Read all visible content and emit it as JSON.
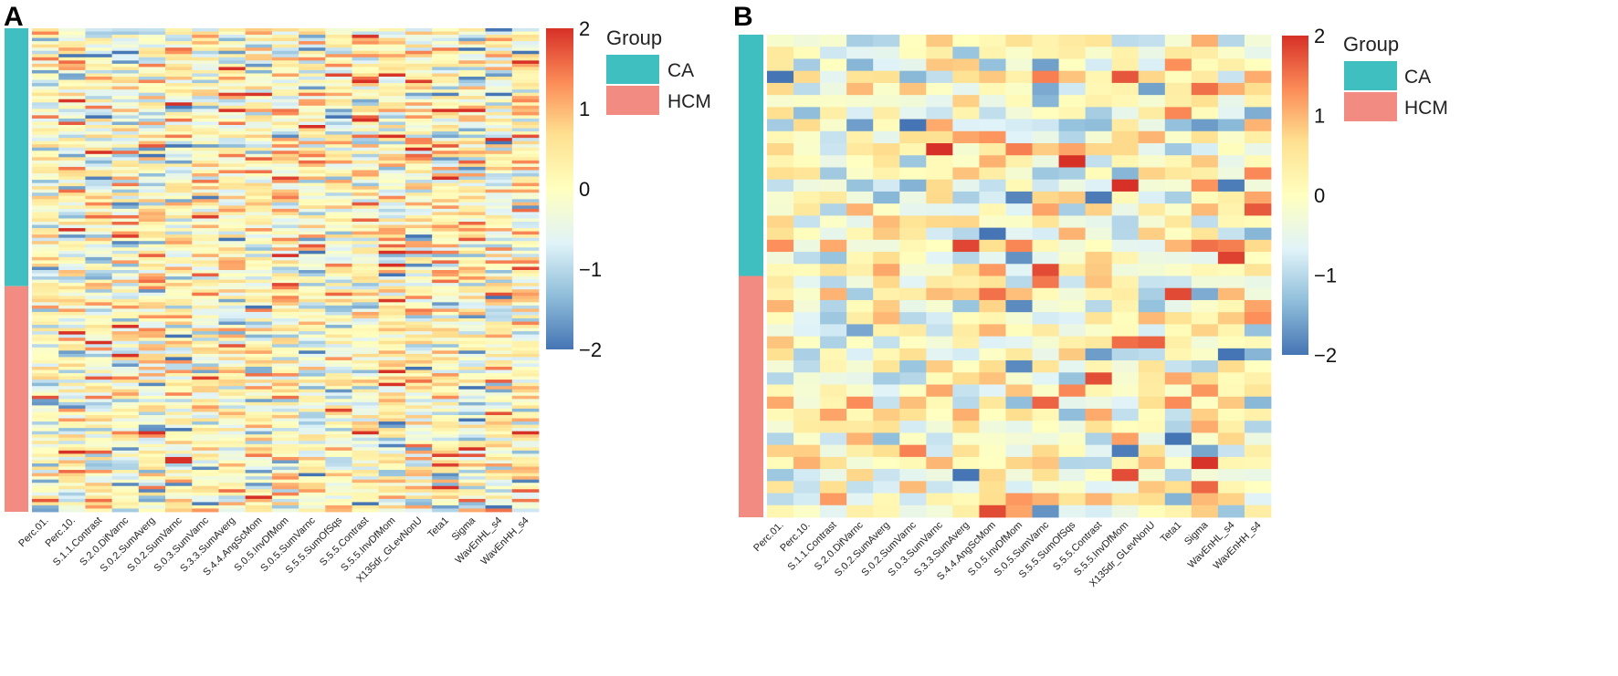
{
  "chart_data": [
    {
      "type": "heatmap",
      "panel_label": "A",
      "title": "",
      "xlabel": "",
      "ylabel": "",
      "columns": [
        "Perc.01.",
        "Perc.10.",
        "S.1.1.Contrast",
        "S.2.0.DifVarnc",
        "S.0.2.SumAverg",
        "S.0.2.SumVarnc",
        "S.0.3.SumVarnc",
        "S.3.3.SumAverg",
        "S.4.4.AngScMom",
        "S.0.5.InvDfMom",
        "S.0.5.SumVarnc",
        "S.5.5.SumOfSqs",
        "S.5.5.Contrast",
        "S.5.5.InvDfMom",
        "X135dr_GLevNonU",
        "Teta1",
        "Sigma",
        "WavEnHL_s4",
        "WavEnHH_s4"
      ],
      "row_count": 150,
      "groups": [
        {
          "name": "CA",
          "rows": 80,
          "color": "#40BFC1"
        },
        {
          "name": "HCM",
          "rows": 70,
          "color": "#F28B82"
        }
      ],
      "color_scale": {
        "min": -2,
        "max": 2,
        "ticks": [
          "2",
          "1",
          "0",
          "−2",
          "−1"
        ],
        "tick_values": [
          2,
          1,
          0,
          -2,
          -1
        ],
        "colors": [
          "#4575B4",
          "#91BFDB",
          "#E0F3F8",
          "#FFFFBF",
          "#FEE090",
          "#FC8D59",
          "#D73027"
        ]
      },
      "legend": {
        "title": "Group",
        "entries": [
          "CA",
          "HCM"
        ],
        "position": "right"
      }
    },
    {
      "type": "heatmap",
      "panel_label": "B",
      "title": "",
      "xlabel": "",
      "ylabel": "",
      "columns": [
        "Perc.01.",
        "Perc.10.",
        "S.1.1.Contrast",
        "S.2.0.DifVarnc",
        "S.0.2.SumAverg",
        "S.0.2.SumVarnc",
        "S.0.3.SumVarnc",
        "S.3.3.SumAverg",
        "S.4.4.AngScMom",
        "S.0.5.InvDfMom",
        "S.0.5.SumVarnc",
        "S.5.5.SumOfSqs",
        "S.5.5.Contrast",
        "S.5.5.InvDfMom",
        "X135dr_GLevNonU",
        "Teta1",
        "Sigma",
        "WavEnHL_s4",
        "WavEnHH_s4"
      ],
      "row_count": 40,
      "groups": [
        {
          "name": "CA",
          "rows": 20,
          "color": "#40BFC1"
        },
        {
          "name": "HCM",
          "rows": 20,
          "color": "#F28B82"
        }
      ],
      "color_scale": {
        "min": -2,
        "max": 2,
        "ticks": [
          "2",
          "1",
          "0",
          "−2",
          "−1"
        ],
        "tick_values": [
          2,
          1,
          0,
          -2,
          -1
        ],
        "colors": [
          "#4575B4",
          "#91BFDB",
          "#E0F3F8",
          "#FFFFBF",
          "#FEE090",
          "#FC8D59",
          "#D73027"
        ]
      },
      "legend": {
        "title": "Group",
        "entries": [
          "CA",
          "HCM"
        ],
        "position": "right"
      }
    }
  ]
}
